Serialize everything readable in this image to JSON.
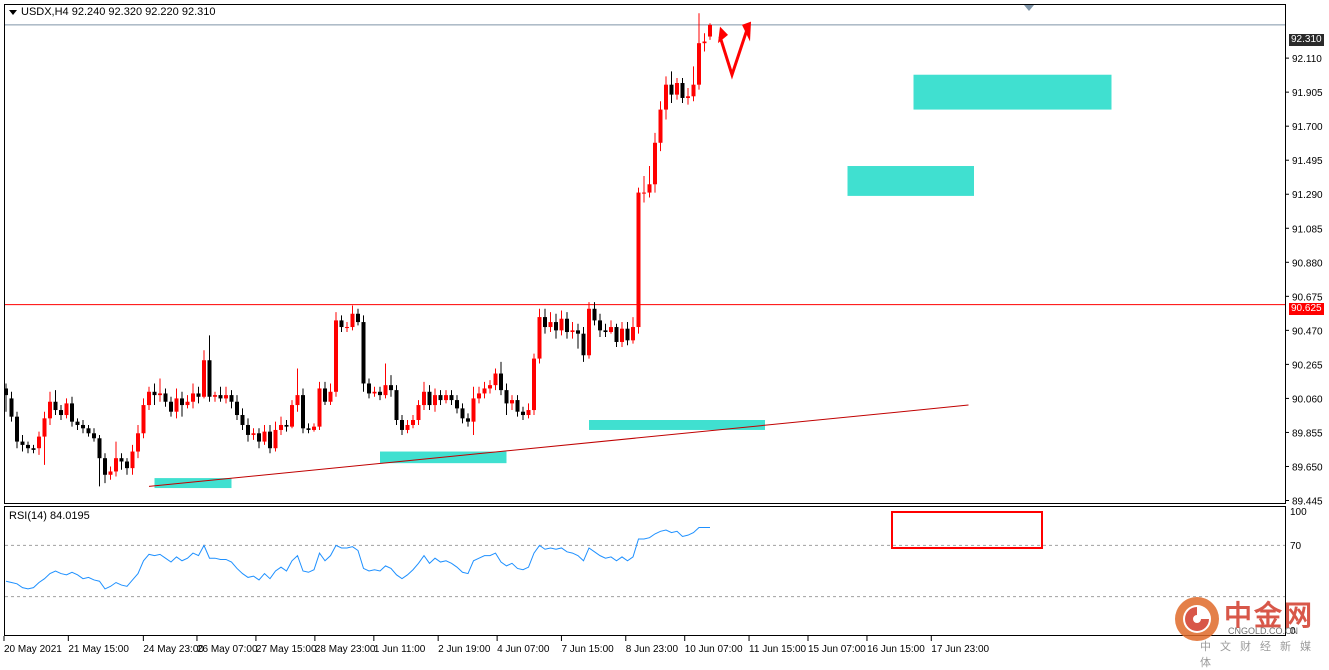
{
  "header": {
    "symbol_text": "USDX,H4  92.240 92.320 92.220 92.310",
    "menu_icon": "triangle-down-icon"
  },
  "indicator": {
    "label": "RSI(14) 84.0195",
    "levels": [
      "100",
      "70",
      "0"
    ]
  },
  "price_tags": {
    "current": "92.310",
    "resistance": "90.625"
  },
  "watermark": {
    "brand_cn": "中金网",
    "brand_en": "CNGOLD.CO.CN",
    "tagline": "中文财经新媒体"
  },
  "colors": {
    "bull": "#ff0000",
    "bear": "#000000",
    "zone": "#40e0d0",
    "trendline": "#c00000",
    "rsi_line": "#1e90ff",
    "highlight": "#ff0000"
  },
  "chart_data": {
    "type": "candlestick",
    "symbol": "USDX",
    "timeframe": "H4",
    "y_ticks": [
      "92.110",
      "91.905",
      "91.700",
      "91.495",
      "91.290",
      "91.085",
      "90.880",
      "90.675",
      "90.470",
      "90.265",
      "90.060",
      "89.855",
      "89.650",
      "89.445"
    ],
    "ylim": [
      89.43,
      92.43
    ],
    "x_ticks": [
      "20 May 2021",
      "21 May 15:00",
      "24 May 23:00",
      "26 May 07:00",
      "27 May 15:00",
      "28 May 23:00",
      "1 Jun 11:00",
      "2 Jun 19:00",
      "4 Jun 07:00",
      "7 Jun 15:00",
      "8 Jun 23:00",
      "10 Jun 07:00",
      "11 Jun 15:00",
      "15 Jun 07:00",
      "16 Jun 15:00",
      "17 Jun 23:00"
    ],
    "last_ohlc": {
      "open": 92.24,
      "high": 92.32,
      "low": 92.22,
      "close": 92.31
    },
    "horizontal_lines": [
      {
        "value": 92.31,
        "label": "92.310"
      },
      {
        "value": 90.625,
        "label": "90.625"
      }
    ],
    "candles": [
      [
        90.12,
        90.08,
        90.15,
        89.98
      ],
      [
        90.06,
        89.95,
        90.1,
        89.92
      ],
      [
        89.95,
        89.8,
        89.98,
        89.76
      ],
      [
        89.8,
        89.78,
        89.84,
        89.74
      ],
      [
        89.78,
        89.76,
        89.8,
        89.73
      ],
      [
        89.76,
        89.75,
        89.78,
        89.73
      ],
      [
        89.76,
        89.83,
        89.86,
        89.72
      ],
      [
        89.83,
        89.94,
        89.98,
        89.66
      ],
      [
        89.94,
        90.04,
        90.1,
        89.9
      ],
      [
        90.04,
        89.99,
        90.11,
        89.96
      ],
      [
        89.99,
        89.96,
        90.02,
        89.93
      ],
      [
        89.96,
        90.03,
        90.06,
        89.94
      ],
      [
        90.03,
        89.92,
        90.07,
        89.89
      ],
      [
        89.92,
        89.9,
        89.94,
        89.87
      ],
      [
        89.9,
        89.88,
        89.93,
        89.85
      ],
      [
        89.88,
        89.85,
        89.9,
        89.83
      ],
      [
        89.85,
        89.82,
        89.88,
        89.8
      ],
      [
        89.82,
        89.7,
        89.84,
        89.53
      ],
      [
        89.7,
        89.6,
        89.73,
        89.55
      ],
      [
        89.6,
        89.62,
        89.65,
        89.57
      ],
      [
        89.62,
        89.7,
        89.8,
        89.59
      ],
      [
        89.7,
        89.68,
        89.73,
        89.63
      ],
      [
        89.68,
        89.64,
        89.7,
        89.6
      ],
      [
        89.64,
        89.74,
        89.78,
        89.6
      ],
      [
        89.74,
        89.85,
        89.9,
        89.7
      ],
      [
        89.85,
        90.02,
        90.06,
        89.82
      ],
      [
        90.02,
        90.1,
        90.13,
        89.99
      ],
      [
        90.1,
        90.08,
        90.15,
        90.02
      ],
      [
        90.08,
        90.09,
        90.18,
        90.04
      ],
      [
        90.09,
        90.04,
        90.12,
        90.01
      ],
      [
        90.04,
        89.98,
        90.07,
        89.95
      ],
      [
        89.98,
        90.06,
        90.12,
        89.94
      ],
      [
        90.06,
        90.02,
        90.1,
        89.95
      ],
      [
        90.02,
        90.04,
        90.08,
        90.0
      ],
      [
        90.04,
        90.09,
        90.15,
        90.0
      ],
      [
        90.09,
        90.07,
        90.13,
        90.03
      ],
      [
        90.07,
        90.29,
        90.35,
        90.06
      ],
      [
        90.29,
        90.07,
        90.44,
        90.04
      ],
      [
        90.07,
        90.08,
        90.1,
        90.04
      ],
      [
        90.08,
        90.06,
        90.13,
        90.04
      ],
      [
        90.06,
        90.08,
        90.13,
        90.03
      ],
      [
        90.08,
        90.04,
        90.11,
        90.0
      ],
      [
        90.04,
        89.96,
        90.08,
        89.93
      ],
      [
        89.96,
        89.9,
        90.0,
        89.87
      ],
      [
        89.9,
        89.84,
        89.94,
        89.8
      ],
      [
        89.84,
        89.85,
        89.88,
        89.81
      ],
      [
        89.85,
        89.8,
        89.88,
        89.76
      ],
      [
        89.8,
        89.86,
        89.9,
        89.78
      ],
      [
        89.86,
        89.76,
        89.9,
        89.73
      ],
      [
        89.76,
        89.87,
        89.92,
        89.74
      ],
      [
        89.87,
        89.9,
        89.95,
        89.84
      ],
      [
        89.9,
        89.89,
        89.93,
        89.86
      ],
      [
        89.89,
        90.02,
        90.05,
        89.88
      ],
      [
        90.02,
        90.08,
        90.24,
        89.98
      ],
      [
        90.08,
        89.88,
        90.12,
        89.85
      ],
      [
        89.88,
        89.87,
        89.91,
        89.85
      ],
      [
        89.87,
        89.89,
        89.91,
        89.86
      ],
      [
        89.89,
        90.12,
        90.16,
        89.87
      ],
      [
        90.12,
        90.04,
        90.16,
        90.02
      ],
      [
        90.04,
        90.1,
        90.15,
        90.02
      ],
      [
        90.1,
        90.53,
        90.58,
        90.07
      ],
      [
        90.53,
        90.49,
        90.56,
        90.46
      ],
      [
        90.49,
        90.49,
        90.52,
        90.46
      ],
      [
        90.49,
        90.57,
        90.62,
        90.47
      ],
      [
        90.57,
        90.52,
        90.6,
        90.5
      ],
      [
        90.52,
        90.15,
        90.56,
        90.1
      ],
      [
        90.15,
        90.09,
        90.18,
        90.06
      ],
      [
        90.09,
        90.1,
        90.13,
        90.07
      ],
      [
        90.1,
        90.08,
        90.13,
        90.05
      ],
      [
        90.08,
        90.14,
        90.27,
        90.06
      ],
      [
        90.14,
        90.11,
        90.2,
        90.07
      ],
      [
        90.11,
        89.93,
        90.14,
        89.9
      ],
      [
        89.93,
        89.87,
        89.96,
        89.84
      ],
      [
        89.87,
        89.9,
        89.93,
        89.85
      ],
      [
        89.9,
        89.93,
        89.96,
        89.88
      ],
      [
        89.93,
        90.02,
        90.05,
        89.9
      ],
      [
        90.02,
        90.1,
        90.16,
        89.99
      ],
      [
        90.1,
        90.02,
        90.14,
        89.99
      ],
      [
        90.02,
        90.08,
        90.12,
        89.98
      ],
      [
        90.08,
        90.05,
        90.11,
        90.02
      ],
      [
        90.05,
        90.08,
        90.11,
        90.03
      ],
      [
        90.08,
        90.05,
        90.11,
        90.02
      ],
      [
        90.05,
        90.0,
        90.08,
        89.97
      ],
      [
        90.0,
        89.94,
        90.03,
        89.91
      ],
      [
        89.94,
        89.92,
        89.97,
        89.89
      ],
      [
        89.92,
        90.06,
        90.13,
        89.84
      ],
      [
        90.06,
        90.09,
        90.13,
        90.03
      ],
      [
        90.09,
        90.12,
        90.16,
        90.06
      ],
      [
        90.12,
        90.14,
        90.17,
        90.09
      ],
      [
        90.14,
        90.21,
        90.24,
        90.11
      ],
      [
        90.21,
        90.11,
        90.28,
        90.08
      ],
      [
        90.11,
        90.03,
        90.15,
        89.96
      ],
      [
        90.03,
        90.05,
        90.08,
        89.99
      ],
      [
        90.05,
        89.98,
        90.08,
        89.95
      ],
      [
        89.98,
        89.96,
        90.01,
        89.93
      ],
      [
        89.96,
        89.99,
        90.03,
        89.94
      ],
      [
        89.99,
        90.3,
        90.33,
        89.96
      ],
      [
        90.3,
        90.55,
        90.6,
        90.27
      ],
      [
        90.55,
        90.49,
        90.6,
        90.45
      ],
      [
        90.49,
        90.52,
        90.58,
        90.46
      ],
      [
        90.52,
        90.47,
        90.57,
        90.42
      ],
      [
        90.47,
        90.54,
        90.59,
        90.44
      ],
      [
        90.54,
        90.46,
        90.58,
        90.42
      ],
      [
        90.46,
        90.47,
        90.52,
        90.42
      ],
      [
        90.47,
        90.45,
        90.51,
        90.36
      ],
      [
        90.45,
        90.32,
        90.49,
        90.28
      ],
      [
        90.32,
        90.6,
        90.64,
        90.3
      ],
      [
        90.6,
        90.53,
        90.64,
        90.5
      ],
      [
        90.53,
        90.47,
        90.57,
        90.43
      ],
      [
        90.47,
        90.46,
        90.51,
        90.43
      ],
      [
        90.46,
        90.49,
        90.53,
        90.45
      ],
      [
        90.49,
        90.4,
        90.51,
        90.37
      ],
      [
        90.4,
        90.48,
        90.52,
        90.37
      ],
      [
        90.48,
        90.41,
        90.52,
        90.38
      ],
      [
        90.41,
        90.49,
        90.55,
        90.39
      ],
      [
        90.49,
        91.3,
        91.33,
        90.45
      ],
      [
        91.3,
        91.3,
        91.4,
        91.24
      ],
      [
        91.3,
        91.35,
        91.46,
        91.27
      ],
      [
        91.35,
        91.6,
        91.66,
        91.3
      ],
      [
        91.6,
        91.8,
        91.85,
        91.55
      ],
      [
        91.8,
        91.95,
        92.0,
        91.74
      ],
      [
        91.95,
        91.89,
        92.03,
        91.84
      ],
      [
        91.89,
        91.96,
        91.99,
        91.86
      ],
      [
        91.96,
        91.87,
        91.99,
        91.84
      ],
      [
        91.87,
        91.88,
        91.93,
        91.83
      ],
      [
        91.88,
        91.95,
        92.06,
        91.85
      ],
      [
        91.95,
        92.2,
        92.38,
        91.92
      ],
      [
        92.2,
        92.21,
        92.26,
        92.15
      ],
      [
        92.24,
        92.31,
        92.32,
        92.22
      ]
    ],
    "zones": [
      {
        "x0": 27,
        "x1": 41,
        "y0": 89.52,
        "y1": 89.58
      },
      {
        "x0": 68,
        "x1": 91,
        "y0": 89.67,
        "y1": 89.74
      },
      {
        "x0": 106,
        "x1": 138,
        "y0": 89.87,
        "y1": 89.93
      },
      {
        "x0": 153,
        "x1": 176,
        "y0": 91.28,
        "y1": 91.46
      },
      {
        "x0": 165,
        "x1": 201,
        "y0": 91.8,
        "y1": 92.01
      }
    ],
    "trendline": {
      "x0": 26,
      "y0": 89.53,
      "x1": 175,
      "y1": 90.02
    },
    "rsi": {
      "name": "RSI(14)",
      "last": 84.0195,
      "levels": [
        70
      ],
      "ylim": [
        0,
        100
      ],
      "values": [
        42,
        41,
        40,
        37,
        36,
        37,
        41,
        44,
        48,
        50,
        48,
        47,
        49,
        47,
        44,
        45,
        43,
        42,
        36,
        38,
        41,
        39,
        38,
        43,
        48,
        58,
        63,
        62,
        63,
        60,
        57,
        61,
        58,
        60,
        64,
        62,
        70,
        60,
        60,
        59,
        59,
        57,
        52,
        48,
        45,
        46,
        43,
        48,
        44,
        50,
        53,
        50,
        58,
        62,
        50,
        49,
        51,
        64,
        58,
        62,
        70,
        68,
        68,
        69,
        66,
        52,
        50,
        51,
        50,
        54,
        52,
        47,
        44,
        47,
        51,
        56,
        62,
        56,
        60,
        57,
        58,
        56,
        53,
        49,
        48,
        58,
        60,
        62,
        62,
        64,
        57,
        54,
        56,
        52,
        51,
        53,
        64,
        70,
        67,
        68,
        67,
        68,
        65,
        64,
        62,
        58,
        68,
        65,
        62,
        60,
        61,
        58,
        61,
        58,
        61,
        75,
        75,
        76,
        79,
        81,
        82,
        80,
        81,
        77,
        78,
        80,
        84,
        84,
        84
      ]
    }
  }
}
